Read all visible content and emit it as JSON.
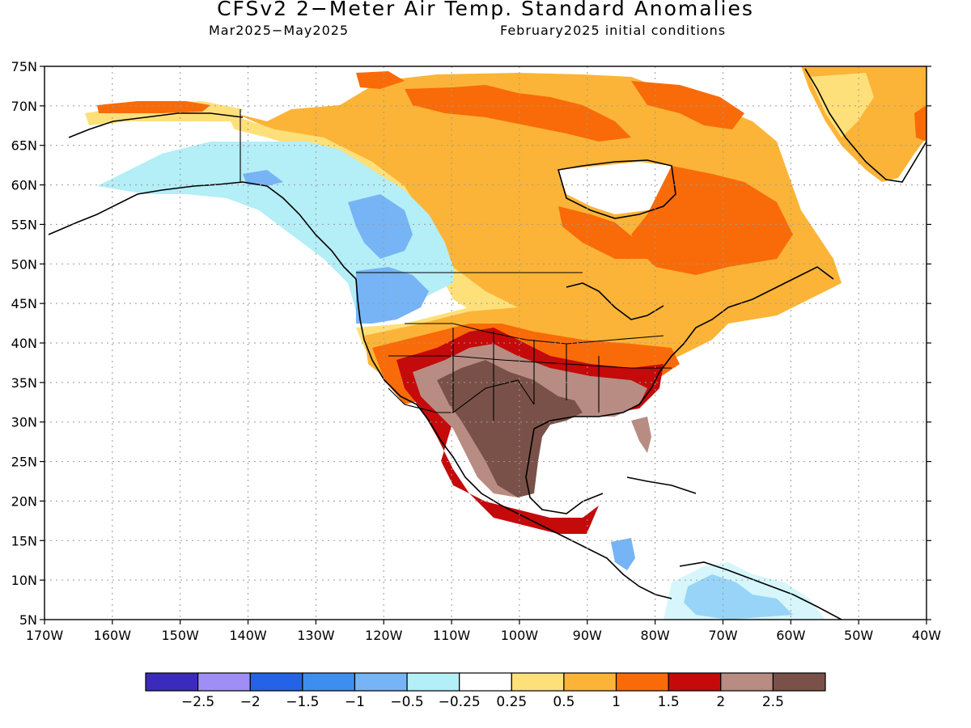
{
  "title": "CFSv2 2−Meter Air Temp. Standard Anomalies",
  "subtitle_left": "Mar2025−May2025",
  "subtitle_right": "February2025 initial conditions",
  "lat_labels": [
    "75N",
    "70N",
    "65N",
    "60N",
    "55N",
    "50N",
    "45N",
    "40N",
    "35N",
    "30N",
    "25N",
    "20N",
    "15N",
    "10N",
    "5N"
  ],
  "lon_labels": [
    "170W",
    "160W",
    "150W",
    "140W",
    "130W",
    "120W",
    "110W",
    "100W",
    "90W",
    "80W",
    "70W",
    "60W",
    "50W",
    "40W"
  ],
  "colorbar": {
    "colors": [
      "#3b2bbd",
      "#9f8ff5",
      "#2463e6",
      "#3e8ef0",
      "#76b4f5",
      "#b4eef7",
      "#ffffff",
      "#fde07a",
      "#fbb437",
      "#f96b08",
      "#c40a0a",
      "#b88c82",
      "#7a5148"
    ],
    "labels": [
      "−2.5",
      "−2",
      "−1.5",
      "−1",
      "−0.5",
      "−0.25",
      "0.25",
      "0.5",
      "1",
      "1.5",
      "2",
      "2.5"
    ]
  },
  "map_features": {
    "grid": "dotted",
    "regions": [
      {
        "name": "Southwest US / northern Mexico core",
        "value": "2.5",
        "color": "#7a5148"
      },
      {
        "name": "Southern Plains to Southeast",
        "value": "2",
        "color": "#b88c82"
      },
      {
        "name": "Central US band",
        "value": "1.5",
        "color": "#c40a0a"
      },
      {
        "name": "Hudson Bay / Labrador",
        "value": "1",
        "color": "#f96b08"
      },
      {
        "name": "Great Lakes / Northeast",
        "value": "0.5",
        "color": "#fbb437"
      },
      {
        "name": "Alaska / British Columbia",
        "value": "−0.25",
        "color": "#b4eef7"
      },
      {
        "name": "Pacific Northwest",
        "value": "−1",
        "color": "#76b4f5"
      }
    ]
  }
}
